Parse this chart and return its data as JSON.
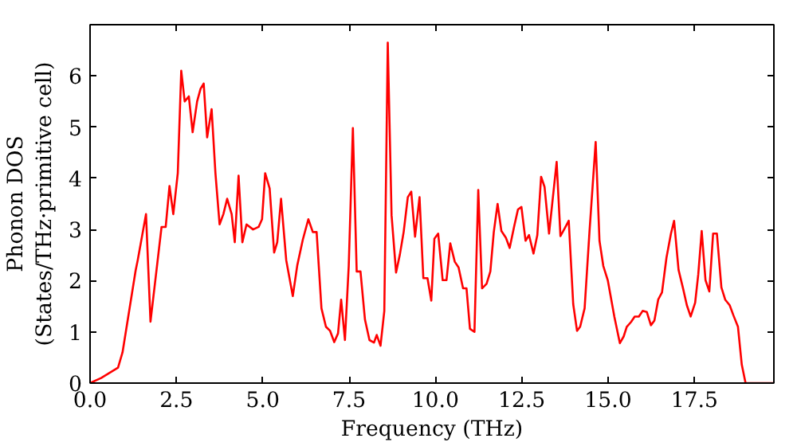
{
  "chart_data": {
    "type": "line",
    "xlabel": "Frequency (THz)",
    "ylabel": "Phonon DOS\n(States/THz·primitive cell)",
    "x": [
      0,
      0.32,
      0.81,
      0.94,
      1.13,
      1.32,
      1.38,
      1.62,
      1.75,
      2.07,
      2.19,
      2.3,
      2.41,
      2.54,
      2.64,
      2.74,
      2.86,
      2.97,
      3.1,
      3.2,
      3.29,
      3.39,
      3.52,
      3.63,
      3.75,
      3.86,
      3.97,
      4.1,
      4.19,
      4.3,
      4.41,
      4.53,
      4.72,
      4.88,
      4.98,
      5.07,
      5.2,
      5.33,
      5.42,
      5.53,
      5.68,
      5.87,
      6.0,
      6.16,
      6.32,
      6.45,
      6.56,
      6.7,
      6.83,
      6.95,
      7.07,
      7.18,
      7.27,
      7.38,
      7.49,
      7.61,
      7.72,
      7.83,
      7.96,
      8.09,
      8.22,
      8.3,
      8.41,
      8.52,
      8.62,
      8.73,
      8.86,
      8.97,
      9.08,
      9.2,
      9.3,
      9.41,
      9.54,
      9.65,
      9.77,
      9.88,
      9.97,
      10.08,
      10.21,
      10.32,
      10.43,
      10.56,
      10.67,
      10.8,
      10.9,
      11.0,
      11.13,
      11.24,
      11.35,
      11.48,
      11.59,
      11.69,
      11.8,
      11.91,
      12.04,
      12.15,
      12.28,
      12.39,
      12.49,
      12.61,
      12.71,
      12.84,
      12.95,
      13.06,
      13.16,
      13.29,
      13.51,
      13.62,
      13.75,
      13.86,
      13.99,
      14.1,
      14.19,
      14.32,
      14.46,
      14.64,
      14.75,
      14.86,
      14.99,
      15.18,
      15.34,
      15.45,
      15.54,
      15.66,
      15.77,
      15.89,
      16.0,
      16.12,
      16.24,
      16.34,
      16.45,
      16.56,
      16.69,
      16.82,
      16.91,
      17.04,
      17.17,
      17.28,
      17.39,
      17.52,
      17.61,
      17.71,
      17.82,
      17.93,
      18.04,
      18.15,
      18.28,
      18.39,
      18.52,
      18.63,
      18.76,
      18.87,
      18.98,
      19.8
    ],
    "series": [
      {
        "color": "#ff0000",
        "values": [
          0,
          0.1,
          0.3,
          0.6,
          1.4,
          2.2,
          2.4,
          3.3,
          1.2,
          3.05,
          3.05,
          3.85,
          3.3,
          4.1,
          6.1,
          5.5,
          5.6,
          4.9,
          5.5,
          5.75,
          5.85,
          4.8,
          5.35,
          4.1,
          3.1,
          3.3,
          3.6,
          3.3,
          2.75,
          4.05,
          2.75,
          3.1,
          3.0,
          3.05,
          3.2,
          4.1,
          3.8,
          2.55,
          2.75,
          3.6,
          2.4,
          1.7,
          2.3,
          2.8,
          3.2,
          2.95,
          2.95,
          1.46,
          1.1,
          1.02,
          0.8,
          0.97,
          1.63,
          0.84,
          2.29,
          4.98,
          2.18,
          2.18,
          1.24,
          0.84,
          0.79,
          0.94,
          0.73,
          1.41,
          6.65,
          3.28,
          2.16,
          2.51,
          2.95,
          3.63,
          3.74,
          2.86,
          3.63,
          2.05,
          2.05,
          1.61,
          2.82,
          2.92,
          2.01,
          2.01,
          2.73,
          2.37,
          2.26,
          1.85,
          1.85,
          1.06,
          1.0,
          3.77,
          1.85,
          1.94,
          2.18,
          2.95,
          3.5,
          2.97,
          2.84,
          2.64,
          3.06,
          3.39,
          3.44,
          2.78,
          2.89,
          2.53,
          2.89,
          4.03,
          3.83,
          2.92,
          4.32,
          2.87,
          3.03,
          3.17,
          1.54,
          1.02,
          1.1,
          1.46,
          2.95,
          4.71,
          2.78,
          2.29,
          2.01,
          1.3,
          0.78,
          0.91,
          1.1,
          1.19,
          1.3,
          1.3,
          1.41,
          1.39,
          1.13,
          1.22,
          1.63,
          1.77,
          2.45,
          2.92,
          3.17,
          2.21,
          1.85,
          1.52,
          1.3,
          1.57,
          2.12,
          2.97,
          2.01,
          1.79,
          2.92,
          2.92,
          1.87,
          1.63,
          1.52,
          1.32,
          1.1,
          0.36,
          0,
          0
        ]
      }
    ],
    "xlim": [
      0,
      19.8
    ],
    "ylim": [
      0,
      7
    ],
    "xticks": [
      {
        "value": 0,
        "label": "0.0"
      },
      {
        "value": 2.5,
        "label": "2.5"
      },
      {
        "value": 5,
        "label": "5.0"
      },
      {
        "value": 7.5,
        "label": "7.5"
      },
      {
        "value": 10,
        "label": "10.0"
      },
      {
        "value": 12.5,
        "label": "12.5"
      },
      {
        "value": 15,
        "label": "15.0"
      },
      {
        "value": 17.5,
        "label": "17.5"
      }
    ],
    "yticks": [
      0,
      1,
      2,
      3,
      4,
      5,
      6
    ],
    "grid": false
  }
}
